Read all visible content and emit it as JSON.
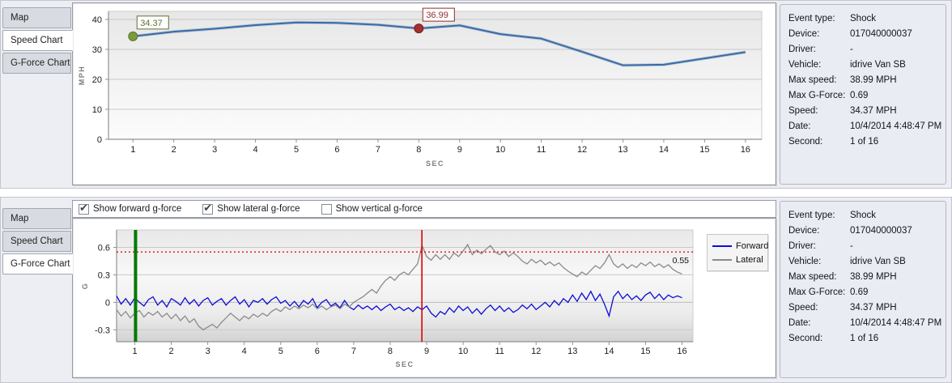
{
  "tabs": [
    {
      "id": "map",
      "label": "Map"
    },
    {
      "id": "speed-chart",
      "label": "Speed Chart"
    },
    {
      "id": "g-force-chart",
      "label": "G-Force Chart"
    }
  ],
  "top_panel": {
    "active_tab": "Speed Chart"
  },
  "bottom_panel": {
    "active_tab": "G-Force Chart",
    "checkboxes": [
      {
        "label": "Show forward g-force",
        "checked": true
      },
      {
        "label": "Show lateral g-force",
        "checked": true
      },
      {
        "label": "Show vertical g-force",
        "checked": false
      }
    ]
  },
  "event_details": {
    "rows": [
      {
        "label": "Event type:",
        "value": "Shock"
      },
      {
        "label": "Device:",
        "value": "017040000037"
      },
      {
        "label": "Driver:",
        "value": "-"
      },
      {
        "label": "Vehicle:",
        "value": "idrive Van SB"
      },
      {
        "label": "Max speed:",
        "value": "38.99 MPH"
      },
      {
        "label": "Max G-Force:",
        "value": "0.69"
      },
      {
        "label": "Speed:",
        "value": "34.37 MPH"
      },
      {
        "label": "Date:",
        "value": "10/4/2014 4:48:47 PM"
      },
      {
        "label": "Second:",
        "value": "1 of 16"
      }
    ]
  },
  "chart_data": [
    {
      "type": "line",
      "name": "speed",
      "xlabel": "SEC",
      "ylabel": "MPH",
      "xticks": [
        1,
        2,
        3,
        4,
        5,
        6,
        7,
        8,
        9,
        10,
        11,
        12,
        13,
        14,
        15,
        16
      ],
      "yticks": [
        0,
        10,
        20,
        30,
        40
      ],
      "xlim": [
        0.4,
        16.4
      ],
      "ylim": [
        0,
        40
      ],
      "line_color": "#3a6ba5",
      "x": [
        1,
        2,
        3,
        4,
        5,
        6,
        7,
        8,
        9,
        10,
        11,
        12,
        13,
        14,
        15,
        16
      ],
      "values": [
        34.37,
        35.9,
        36.9,
        38.1,
        38.99,
        38.85,
        38.2,
        36.99,
        38.0,
        35.1,
        33.6,
        29.2,
        24.7,
        24.9,
        27.0,
        29.1
      ],
      "markers": [
        {
          "x": 1,
          "y": 34.37,
          "label": "34.37",
          "fill": "#7a9b3e",
          "stroke": "#5d7526",
          "text_color": "#5f7030"
        },
        {
          "x": 8,
          "y": 36.99,
          "label": "36.99",
          "fill": "#a52f2f",
          "stroke": "#7c1f1f",
          "text_color": "#8f2d2d"
        }
      ]
    },
    {
      "type": "line",
      "name": "gforce",
      "xlabel": "SEC",
      "ylabel": "G",
      "xticks": [
        1,
        2,
        3,
        4,
        5,
        6,
        7,
        8,
        9,
        10,
        11,
        12,
        13,
        14,
        15,
        16
      ],
      "yticks": [
        -0.3,
        0,
        0.3,
        0.6
      ],
      "xlim": [
        0.5,
        16.3
      ],
      "ylim": [
        -0.43,
        0.79
      ],
      "threshold": {
        "y": 0.55,
        "label": "0.55",
        "color": "#e01010"
      },
      "event_lines": [
        {
          "x": 1.02,
          "color": "#007a00",
          "width": 4
        },
        {
          "x": 8.87,
          "color": "#dd0000",
          "width": 1.6
        }
      ],
      "legend": {
        "position": "top-right",
        "entries": [
          {
            "name": "Forward",
            "color": "#0d0dd6"
          },
          {
            "name": "Lateral",
            "color": "#8a8a8a"
          }
        ]
      },
      "series": [
        {
          "name": "Forward",
          "color": "#0d0dd6",
          "x0": 0.5,
          "dx": 0.125,
          "y": [
            0.07,
            -0.02,
            0.04,
            -0.03,
            0.05,
            0.0,
            -0.04,
            0.03,
            0.06,
            -0.03,
            0.02,
            -0.05,
            0.04,
            0.01,
            -0.03,
            0.05,
            -0.02,
            0.03,
            -0.04,
            0.02,
            0.05,
            -0.03,
            0.01,
            0.04,
            -0.03,
            0.02,
            0.06,
            -0.02,
            0.03,
            -0.05,
            0.02,
            0.0,
            0.04,
            -0.02,
            0.03,
            0.06,
            -0.01,
            0.02,
            -0.04,
            0.01,
            -0.05,
            0.02,
            -0.02,
            0.04,
            -0.06,
            0.0,
            0.03,
            -0.04,
            -0.01,
            -0.06,
            0.02,
            -0.05,
            -0.08,
            -0.03,
            -0.07,
            -0.04,
            -0.08,
            -0.04,
            -0.09,
            -0.05,
            -0.02,
            -0.08,
            -0.05,
            -0.09,
            -0.06,
            -0.1,
            -0.05,
            -0.08,
            -0.04,
            -0.12,
            -0.16,
            -0.1,
            -0.13,
            -0.06,
            -0.11,
            -0.04,
            -0.09,
            -0.05,
            -0.12,
            -0.07,
            -0.13,
            -0.07,
            -0.03,
            -0.09,
            -0.04,
            -0.1,
            -0.06,
            -0.11,
            -0.08,
            -0.03,
            -0.07,
            -0.02,
            -0.08,
            -0.04,
            0.0,
            -0.05,
            0.02,
            -0.03,
            0.04,
            0.0,
            0.08,
            0.01,
            0.1,
            0.03,
            0.12,
            0.02,
            0.09,
            -0.02,
            -0.15,
            0.06,
            0.12,
            0.04,
            0.09,
            0.03,
            0.07,
            0.02,
            0.08,
            0.11,
            0.04,
            0.09,
            0.03,
            0.08,
            0.05,
            0.07,
            0.05
          ]
        },
        {
          "name": "Lateral",
          "color": "#8a8a8a",
          "x0": 0.5,
          "dx": 0.125,
          "y": [
            -0.08,
            -0.15,
            -0.1,
            -0.17,
            -0.12,
            -0.09,
            -0.16,
            -0.11,
            -0.14,
            -0.1,
            -0.16,
            -0.12,
            -0.18,
            -0.13,
            -0.2,
            -0.15,
            -0.22,
            -0.18,
            -0.26,
            -0.3,
            -0.27,
            -0.24,
            -0.28,
            -0.22,
            -0.17,
            -0.12,
            -0.16,
            -0.2,
            -0.15,
            -0.18,
            -0.13,
            -0.16,
            -0.12,
            -0.15,
            -0.1,
            -0.07,
            -0.1,
            -0.05,
            -0.08,
            -0.04,
            -0.07,
            -0.03,
            -0.06,
            -0.02,
            -0.07,
            -0.04,
            -0.08,
            -0.05,
            -0.03,
            -0.07,
            -0.02,
            -0.05,
            0.0,
            0.03,
            0.06,
            0.1,
            0.14,
            0.1,
            0.18,
            0.24,
            0.28,
            0.24,
            0.3,
            0.33,
            0.3,
            0.36,
            0.42,
            0.62,
            0.5,
            0.46,
            0.52,
            0.47,
            0.52,
            0.47,
            0.54,
            0.5,
            0.56,
            0.63,
            0.52,
            0.57,
            0.53,
            0.58,
            0.62,
            0.55,
            0.52,
            0.56,
            0.5,
            0.54,
            0.5,
            0.45,
            0.42,
            0.47,
            0.43,
            0.46,
            0.41,
            0.44,
            0.4,
            0.43,
            0.38,
            0.34,
            0.31,
            0.28,
            0.33,
            0.3,
            0.35,
            0.4,
            0.37,
            0.43,
            0.52,
            0.42,
            0.38,
            0.42,
            0.37,
            0.41,
            0.38,
            0.43,
            0.4,
            0.44,
            0.39,
            0.42,
            0.38,
            0.41,
            0.36,
            0.33,
            0.31
          ]
        }
      ]
    }
  ]
}
